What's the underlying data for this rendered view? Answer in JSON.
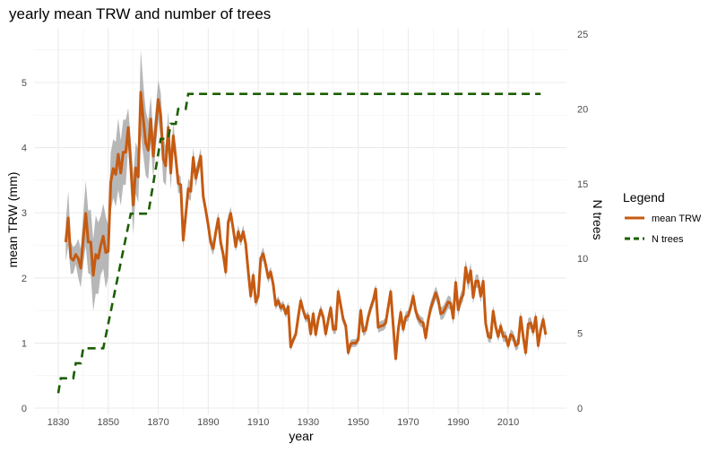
{
  "chart_data": {
    "type": "line",
    "title": "yearly mean TRW and number of trees",
    "xlabel": "year",
    "ylabel": "mean TRW (mm)",
    "ylabel_right": "N trees",
    "xlim": [
      1820,
      2030
    ],
    "ylim": [
      0,
      5.6
    ],
    "ylim_right": [
      0,
      25
    ],
    "x_ticks": [
      1830,
      1850,
      1870,
      1890,
      1910,
      1930,
      1950,
      1970,
      1990,
      2010
    ],
    "y_ticks": [
      0,
      1,
      2,
      3,
      4,
      5
    ],
    "y_ticks_right": [
      0,
      5,
      10,
      15,
      20,
      25
    ],
    "grid": true,
    "legend": {
      "title": "Legend",
      "placement": "right"
    },
    "series": [
      {
        "name": "mean TRW",
        "axis": "left",
        "color": "#C55A11",
        "style": "solid",
        "band_color": "#b3b3b3",
        "points_year_mean_halfwidth": [
          [
            1833,
            2.55,
            0.3
          ],
          [
            1834,
            2.92,
            0.42
          ],
          [
            1835,
            2.31,
            0.25
          ],
          [
            1836,
            2.27,
            0.2
          ],
          [
            1837,
            2.36,
            0.15
          ],
          [
            1838,
            2.3,
            0.3
          ],
          [
            1839,
            2.15,
            0.3
          ],
          [
            1840,
            2.6,
            0.38
          ],
          [
            1841,
            2.99,
            0.5
          ],
          [
            1842,
            2.55,
            0.48
          ],
          [
            1843,
            2.55,
            0.5
          ],
          [
            1844,
            2.04,
            0.55
          ],
          [
            1845,
            2.36,
            0.6
          ],
          [
            1846,
            2.3,
            0.55
          ],
          [
            1847,
            2.5,
            0.45
          ],
          [
            1848,
            2.64,
            0.5
          ],
          [
            1849,
            2.39,
            0.55
          ],
          [
            1850,
            2.41,
            0.4
          ],
          [
            1851,
            3.47,
            0.45
          ],
          [
            1852,
            3.68,
            0.45
          ],
          [
            1853,
            3.59,
            0.5
          ],
          [
            1854,
            3.9,
            0.55
          ],
          [
            1855,
            3.61,
            0.5
          ],
          [
            1856,
            3.93,
            0.5
          ],
          [
            1857,
            3.93,
            0.5
          ],
          [
            1858,
            4.31,
            0.3
          ],
          [
            1859,
            3.74,
            0.4
          ],
          [
            1860,
            3.12,
            0.45
          ],
          [
            1861,
            3.69,
            0.4
          ],
          [
            1862,
            3.55,
            0.4
          ],
          [
            1863,
            4.85,
            0.65
          ],
          [
            1864,
            4.44,
            0.55
          ],
          [
            1865,
            4.07,
            0.5
          ],
          [
            1866,
            3.96,
            0.45
          ],
          [
            1867,
            4.44,
            0.35
          ],
          [
            1868,
            3.87,
            0.35
          ],
          [
            1869,
            4.3,
            0.3
          ],
          [
            1870,
            4.74,
            0.3
          ],
          [
            1871,
            4.49,
            0.35
          ],
          [
            1872,
            3.83,
            0.35
          ],
          [
            1873,
            3.72,
            0.3
          ],
          [
            1874,
            4.31,
            0.25
          ],
          [
            1875,
            3.61,
            0.25
          ],
          [
            1876,
            4.18,
            0.2
          ],
          [
            1877,
            3.85,
            0.18
          ],
          [
            1878,
            3.45,
            0.15
          ],
          [
            1879,
            3.43,
            0.12
          ],
          [
            1880,
            2.58,
            0.13
          ],
          [
            1881,
            2.97,
            0.12
          ],
          [
            1882,
            3.37,
            0.15
          ],
          [
            1883,
            3.33,
            0.15
          ],
          [
            1884,
            3.85,
            0.15
          ],
          [
            1885,
            3.53,
            0.13
          ],
          [
            1886,
            3.7,
            0.12
          ],
          [
            1887,
            3.87,
            0.12
          ],
          [
            1888,
            3.25,
            0.1
          ],
          [
            1889,
            3.04,
            0.1
          ],
          [
            1890,
            2.81,
            0.1
          ],
          [
            1891,
            2.54,
            0.1
          ],
          [
            1892,
            2.45,
            0.1
          ],
          [
            1893,
            2.7,
            0.1
          ],
          [
            1894,
            2.91,
            0.1
          ],
          [
            1895,
            2.54,
            0.1
          ],
          [
            1896,
            2.36,
            0.1
          ],
          [
            1897,
            2.09,
            0.1
          ],
          [
            1898,
            2.86,
            0.1
          ],
          [
            1899,
            2.99,
            0.1
          ],
          [
            1900,
            2.75,
            0.1
          ],
          [
            1901,
            2.48,
            0.08
          ],
          [
            1902,
            2.71,
            0.1
          ],
          [
            1903,
            2.57,
            0.08
          ],
          [
            1904,
            2.71,
            0.1
          ],
          [
            1905,
            2.52,
            0.08
          ],
          [
            1906,
            2.1,
            0.08
          ],
          [
            1907,
            1.72,
            0.08
          ],
          [
            1908,
            2.04,
            0.08
          ],
          [
            1909,
            1.63,
            0.08
          ],
          [
            1910,
            1.72,
            0.08
          ],
          [
            1911,
            2.3,
            0.08
          ],
          [
            1912,
            2.37,
            0.1
          ],
          [
            1913,
            2.2,
            0.08
          ],
          [
            1914,
            2.0,
            0.08
          ],
          [
            1915,
            2.09,
            0.08
          ],
          [
            1916,
            1.9,
            0.08
          ],
          [
            1917,
            1.58,
            0.07
          ],
          [
            1918,
            1.65,
            0.07
          ],
          [
            1919,
            1.54,
            0.07
          ],
          [
            1920,
            1.58,
            0.07
          ],
          [
            1921,
            1.45,
            0.07
          ],
          [
            1922,
            1.56,
            0.07
          ],
          [
            1923,
            0.94,
            0.06
          ],
          [
            1924,
            1.05,
            0.06
          ],
          [
            1925,
            1.13,
            0.06
          ],
          [
            1926,
            1.4,
            0.07
          ],
          [
            1927,
            1.65,
            0.08
          ],
          [
            1928,
            1.5,
            0.07
          ],
          [
            1929,
            1.38,
            0.07
          ],
          [
            1930,
            1.42,
            0.07
          ],
          [
            1931,
            1.14,
            0.07
          ],
          [
            1932,
            1.45,
            0.07
          ],
          [
            1933,
            1.13,
            0.07
          ],
          [
            1934,
            1.36,
            0.07
          ],
          [
            1935,
            1.51,
            0.08
          ],
          [
            1936,
            1.4,
            0.07
          ],
          [
            1937,
            1.14,
            0.07
          ],
          [
            1938,
            1.35,
            0.07
          ],
          [
            1939,
            1.54,
            0.07
          ],
          [
            1940,
            1.21,
            0.07
          ],
          [
            1941,
            1.21,
            0.07
          ],
          [
            1942,
            1.79,
            0.08
          ],
          [
            1943,
            1.58,
            0.07
          ],
          [
            1944,
            1.36,
            0.07
          ],
          [
            1945,
            1.27,
            0.07
          ],
          [
            1946,
            0.85,
            0.06
          ],
          [
            1947,
            0.99,
            0.06
          ],
          [
            1948,
            1.0,
            0.06
          ],
          [
            1949,
            1.0,
            0.06
          ],
          [
            1950,
            1.05,
            0.06
          ],
          [
            1951,
            1.5,
            0.08
          ],
          [
            1952,
            1.18,
            0.07
          ],
          [
            1953,
            1.2,
            0.07
          ],
          [
            1954,
            1.4,
            0.07
          ],
          [
            1955,
            1.54,
            0.08
          ],
          [
            1956,
            1.65,
            0.08
          ],
          [
            1957,
            1.83,
            0.08
          ],
          [
            1958,
            1.24,
            0.08
          ],
          [
            1959,
            1.26,
            0.08
          ],
          [
            1960,
            1.27,
            0.08
          ],
          [
            1961,
            1.31,
            0.08
          ],
          [
            1962,
            1.55,
            0.08
          ],
          [
            1963,
            1.79,
            0.08
          ],
          [
            1964,
            1.27,
            0.08
          ],
          [
            1965,
            0.76,
            0.07
          ],
          [
            1966,
            1.2,
            0.08
          ],
          [
            1967,
            1.47,
            0.08
          ],
          [
            1968,
            1.21,
            0.08
          ],
          [
            1969,
            1.4,
            0.08
          ],
          [
            1970,
            1.42,
            0.08
          ],
          [
            1971,
            1.55,
            0.08
          ],
          [
            1972,
            1.72,
            0.09
          ],
          [
            1973,
            1.49,
            0.09
          ],
          [
            1974,
            1.38,
            0.08
          ],
          [
            1975,
            1.33,
            0.08
          ],
          [
            1976,
            1.31,
            0.08
          ],
          [
            1977,
            1.08,
            0.08
          ],
          [
            1978,
            1.35,
            0.09
          ],
          [
            1979,
            1.54,
            0.1
          ],
          [
            1980,
            1.65,
            0.1
          ],
          [
            1981,
            1.77,
            0.1
          ],
          [
            1982,
            1.67,
            0.1
          ],
          [
            1983,
            1.45,
            0.1
          ],
          [
            1984,
            1.47,
            0.1
          ],
          [
            1985,
            1.55,
            0.1
          ],
          [
            1986,
            1.63,
            0.1
          ],
          [
            1987,
            1.61,
            0.1
          ],
          [
            1988,
            1.38,
            0.1
          ],
          [
            1989,
            1.93,
            0.1
          ],
          [
            1990,
            1.51,
            0.1
          ],
          [
            1991,
            1.67,
            0.1
          ],
          [
            1992,
            1.74,
            0.1
          ],
          [
            1993,
            2.16,
            0.12
          ],
          [
            1994,
            1.93,
            0.12
          ],
          [
            1995,
            2.11,
            0.12
          ],
          [
            1996,
            1.7,
            0.1
          ],
          [
            1997,
            1.95,
            0.1
          ],
          [
            1998,
            1.95,
            0.1
          ],
          [
            1999,
            1.72,
            0.1
          ],
          [
            2000,
            1.95,
            0.1
          ],
          [
            2001,
            1.3,
            0.08
          ],
          [
            2002,
            1.1,
            0.08
          ],
          [
            2003,
            1.08,
            0.08
          ],
          [
            2004,
            1.49,
            0.09
          ],
          [
            2005,
            1.25,
            0.08
          ],
          [
            2006,
            1.1,
            0.08
          ],
          [
            2007,
            1.26,
            0.08
          ],
          [
            2008,
            1.1,
            0.08
          ],
          [
            2009,
            1.1,
            0.08
          ],
          [
            2010,
            0.96,
            0.08
          ],
          [
            2011,
            1.13,
            0.08
          ],
          [
            2012,
            1.1,
            0.08
          ],
          [
            2013,
            0.96,
            0.08
          ],
          [
            2014,
            0.99,
            0.08
          ],
          [
            2015,
            1.4,
            0.09
          ],
          [
            2016,
            1.1,
            0.08
          ],
          [
            2017,
            0.85,
            0.08
          ],
          [
            2018,
            1.29,
            0.09
          ],
          [
            2019,
            1.31,
            0.09
          ],
          [
            2020,
            1.17,
            0.08
          ],
          [
            2021,
            1.4,
            0.09
          ],
          [
            2022,
            0.96,
            0.08
          ],
          [
            2023,
            1.2,
            0.08
          ],
          [
            2024,
            1.36,
            0.09
          ],
          [
            2025,
            1.13,
            0.08
          ]
        ]
      },
      {
        "name": "N trees",
        "axis": "right",
        "color": "#1B5E00",
        "style": "dashed",
        "points_year_n": [
          [
            1830,
            1
          ],
          [
            1831,
            2
          ],
          [
            1836,
            2
          ],
          [
            1837,
            3
          ],
          [
            1839,
            3
          ],
          [
            1840,
            4
          ],
          [
            1848,
            4
          ],
          [
            1859,
            13
          ],
          [
            1866,
            13
          ],
          [
            1871,
            18
          ],
          [
            1874,
            18
          ],
          [
            1875,
            19
          ],
          [
            1877,
            19
          ],
          [
            1878,
            20
          ],
          [
            1881,
            20
          ],
          [
            1882,
            21
          ],
          [
            2023,
            21
          ]
        ]
      }
    ]
  }
}
